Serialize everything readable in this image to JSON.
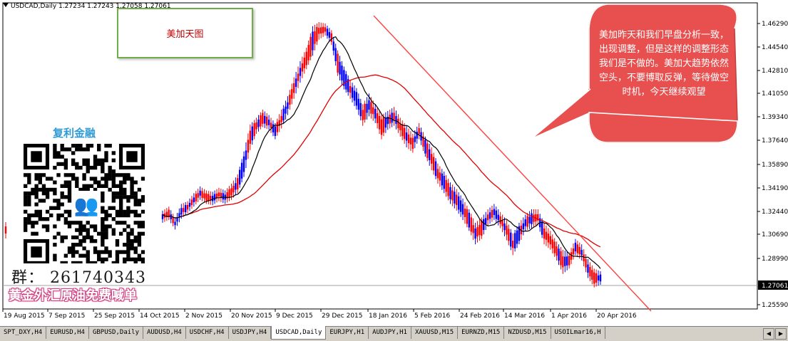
{
  "header": {
    "symbol_ohlc": "USDCAD,Daily  1.27234 1.27243 1.27058 1.27061"
  },
  "title_box": {
    "text": "美加天图"
  },
  "brand": {
    "name": "复利金融"
  },
  "group_text": "群：  261740343",
  "promo_text": "黄金外汇原油免费喊单",
  "callout": {
    "text": "美加昨天和我们早盘分析一致，出现调整，但是这样的调整形态我们是不做的。美加大趋势依然空头，不要博取反弹，等待做空时机，今天继续观望"
  },
  "price_axis": {
    "labels": [
      "1.46290",
      "1.44540",
      "1.42810",
      "1.41050",
      "1.39340",
      "1.37640",
      "1.35890",
      "1.34190",
      "1.32440",
      "1.30690",
      "1.28990",
      "1.25590"
    ],
    "current": "1.27061"
  },
  "time_axis": [
    "19 Aug 2015",
    "7 Sep 2015",
    "25 Sep 2015",
    "14 Oct 2015",
    "2 Nov 2015",
    "20 Nov 2015",
    "9 Dec 2015",
    "29 Dec 2015",
    "18 Jan 2016",
    "5 Feb 2016",
    "24 Feb 2016",
    "14 Mar 2016",
    "1 Apr 2016",
    "20 Apr 2016"
  ],
  "tabs": [
    "SPT_DXY,H4",
    "EURUSD,H4",
    "GBPUSD,Daily",
    "AUDUSD,H4",
    "USDCHF,H4",
    "USDJPY,H4",
    "USDCAD,Daily",
    "EURJPY,H1",
    "AUDJPY,H1",
    "XAUUSD,M15",
    "EURNZD,M15",
    "NZDUSD,M15",
    "USOILmar16,H"
  ],
  "active_tab": "USDCAD,Daily",
  "chart_data": {
    "type": "candlestick",
    "symbol": "USDCAD",
    "timeframe": "Daily",
    "last_price": 1.27061,
    "ylim": [
      1.25,
      1.472
    ],
    "price_path": [
      [
        1.316,
        1.321
      ],
      [
        1.318,
        1.324
      ],
      [
        1.311,
        1.316
      ],
      [
        1.319,
        1.326
      ],
      [
        1.323,
        1.328
      ],
      [
        1.328,
        1.334
      ],
      [
        1.333,
        1.339
      ],
      [
        1.33,
        1.336
      ],
      [
        1.329,
        1.335
      ],
      [
        1.332,
        1.338
      ],
      [
        1.33,
        1.336
      ],
      [
        1.333,
        1.341
      ],
      [
        1.338,
        1.348
      ],
      [
        1.35,
        1.365
      ],
      [
        1.37,
        1.385
      ],
      [
        1.382,
        1.39
      ],
      [
        1.387,
        1.396
      ],
      [
        1.385,
        1.392
      ],
      [
        1.378,
        1.386
      ],
      [
        1.386,
        1.396
      ],
      [
        1.396,
        1.406
      ],
      [
        1.408,
        1.42
      ],
      [
        1.42,
        1.432
      ],
      [
        1.43,
        1.442
      ],
      [
        1.44,
        1.458
      ],
      [
        1.452,
        1.461
      ],
      [
        1.455,
        1.46
      ],
      [
        1.448,
        1.455
      ],
      [
        1.425,
        1.44
      ],
      [
        1.415,
        1.428
      ],
      [
        1.408,
        1.418
      ],
      [
        1.4,
        1.412
      ],
      [
        1.388,
        1.4
      ],
      [
        1.395,
        1.408
      ],
      [
        1.39,
        1.4
      ],
      [
        1.378,
        1.392
      ],
      [
        1.385,
        1.395
      ],
      [
        1.388,
        1.398
      ],
      [
        1.38,
        1.39
      ],
      [
        1.372,
        1.384
      ],
      [
        1.368,
        1.378
      ],
      [
        1.378,
        1.386
      ],
      [
        1.365,
        1.376
      ],
      [
        1.355,
        1.368
      ],
      [
        1.345,
        1.356
      ],
      [
        1.338,
        1.35
      ],
      [
        1.33,
        1.342
      ],
      [
        1.325,
        1.337
      ],
      [
        1.318,
        1.33
      ],
      [
        1.31,
        1.322
      ],
      [
        1.3,
        1.312
      ],
      [
        1.304,
        1.316
      ],
      [
        1.314,
        1.322
      ],
      [
        1.318,
        1.326
      ],
      [
        1.312,
        1.32
      ],
      [
        1.303,
        1.314
      ],
      [
        1.292,
        1.304
      ],
      [
        1.3,
        1.312
      ],
      [
        1.31,
        1.318
      ],
      [
        1.312,
        1.322
      ],
      [
        1.314,
        1.322
      ],
      [
        1.3,
        1.312
      ],
      [
        1.296,
        1.306
      ],
      [
        1.288,
        1.298
      ],
      [
        1.278,
        1.292
      ],
      [
        1.282,
        1.29
      ],
      [
        1.292,
        1.3
      ],
      [
        1.288,
        1.296
      ],
      [
        1.275,
        1.285
      ],
      [
        1.268,
        1.278
      ],
      [
        1.27,
        1.276
      ]
    ],
    "ma_fast_label": "moving average (black)",
    "ma_slow_label": "moving average (red)"
  },
  "colors": {
    "bull": "#0000ff",
    "bear": "#ff0000",
    "ma_fast": "#000000",
    "ma_slow": "#e00000",
    "trendline": "#ff4040",
    "callout_fill": "#e85050",
    "callout_stroke": "#ffffff"
  }
}
